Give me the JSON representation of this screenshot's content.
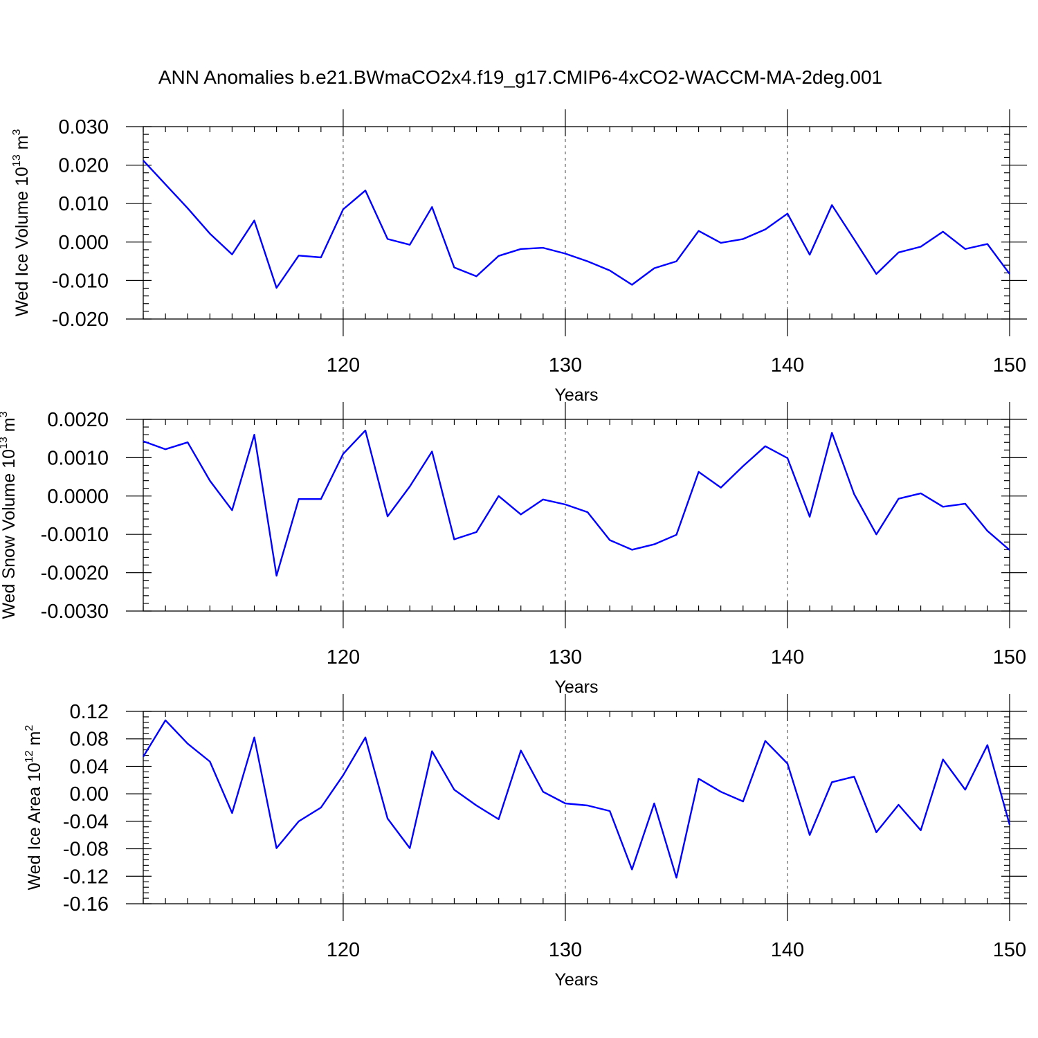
{
  "title": "ANN Anomalies b.e21.BWmaCO2x4.f19_g17.CMIP6-4xCO2-WACCM-MA-2deg.001",
  "colors": {
    "series": "#0000ff",
    "axes": "#000000",
    "background": "#ffffff"
  },
  "chart_data": [
    {
      "type": "line",
      "ylabel": "Wed Ice Volume 10^13 m^3",
      "ylabel_parts": {
        "text": "Wed Ice Volume 10",
        "exp": "13",
        "unit": " m",
        "unit_exp": "3"
      },
      "xlabel": "Years",
      "xlim": [
        111,
        150
      ],
      "ylim": [
        -0.02,
        0.03
      ],
      "yticks": [
        "-0.020",
        "-0.010",
        "0.000",
        "0.010",
        "0.020",
        "0.030"
      ],
      "ytick_values": [
        -0.02,
        -0.01,
        0.0,
        0.01,
        0.02,
        0.03
      ],
      "xticks": [
        "120",
        "130",
        "140",
        "150"
      ],
      "xtick_values": [
        120,
        130,
        140,
        150
      ],
      "grid_x": [
        120,
        130,
        140
      ],
      "x": [
        111,
        112,
        113,
        114,
        115,
        116,
        117,
        118,
        119,
        120,
        121,
        122,
        123,
        124,
        125,
        126,
        127,
        128,
        129,
        130,
        131,
        132,
        133,
        134,
        135,
        136,
        137,
        138,
        139,
        140,
        141,
        142,
        143,
        144,
        145,
        146,
        147,
        148,
        149,
        150
      ],
      "series": [
        {
          "name": "Wed Ice Volume",
          "values": [
            0.0212,
            0.015,
            0.0088,
            0.0022,
            -0.0032,
            0.0056,
            -0.0119,
            -0.0035,
            -0.004,
            0.0085,
            0.0134,
            0.0008,
            -0.0007,
            0.0091,
            -0.0066,
            -0.0089,
            -0.0036,
            -0.0018,
            -0.0015,
            -0.003,
            -0.005,
            -0.0074,
            -0.0111,
            -0.0068,
            -0.005,
            0.0029,
            -0.0002,
            0.0008,
            0.0033,
            0.0074,
            -0.0033,
            0.0096,
            0.0007,
            -0.0083,
            -0.0027,
            -0.0012,
            0.0027,
            -0.0018,
            -0.0005,
            -0.0083
          ]
        }
      ]
    },
    {
      "type": "line",
      "ylabel": "Wed Snow Volume 10^13 m^3",
      "ylabel_parts": {
        "text": "Wed Snow Volume 10",
        "exp": "13",
        "unit": " m",
        "unit_exp": "3"
      },
      "xlabel": "Years",
      "xlim": [
        111,
        150
      ],
      "ylim": [
        -0.003,
        0.002
      ],
      "yticks": [
        "-0.0030",
        "-0.0020",
        "-0.0010",
        "0.0000",
        "0.0010",
        "0.0020"
      ],
      "ytick_values": [
        -0.003,
        -0.002,
        -0.001,
        0.0,
        0.001,
        0.002
      ],
      "xticks": [
        "120",
        "130",
        "140",
        "150"
      ],
      "xtick_values": [
        120,
        130,
        140,
        150
      ],
      "grid_x": [
        120,
        130,
        140
      ],
      "x": [
        111,
        112,
        113,
        114,
        115,
        116,
        117,
        118,
        119,
        120,
        121,
        122,
        123,
        124,
        125,
        126,
        127,
        128,
        129,
        130,
        131,
        132,
        133,
        134,
        135,
        136,
        137,
        138,
        139,
        140,
        141,
        142,
        143,
        144,
        145,
        146,
        147,
        148,
        149,
        150
      ],
      "series": [
        {
          "name": "Wed Snow Volume",
          "values": [
            0.00143,
            0.00122,
            0.0014,
            0.0004,
            -0.00037,
            0.0016,
            -0.00208,
            -8e-05,
            -8e-05,
            0.0011,
            0.00171,
            -0.00053,
            0.00025,
            0.00116,
            -0.00113,
            -0.00094,
            0.0,
            -0.00048,
            -9e-05,
            -0.00022,
            -0.00042,
            -0.00115,
            -0.0014,
            -0.00126,
            -0.00101,
            0.00063,
            0.00022,
            0.00078,
            0.0013,
            0.00099,
            -0.00054,
            0.00165,
            5e-05,
            -0.001,
            -7e-05,
            7e-05,
            -0.00028,
            -0.0002,
            -0.00091,
            -0.00141
          ]
        }
      ]
    },
    {
      "type": "line",
      "ylabel": "Wed Ice Area 10^12 m^2",
      "ylabel_parts": {
        "text": "Wed Ice Area 10",
        "exp": "12",
        "unit": " m",
        "unit_exp": "2"
      },
      "xlabel": "Years",
      "xlim": [
        111,
        150
      ],
      "ylim": [
        -0.16,
        0.12
      ],
      "yticks": [
        "-0.16",
        "-0.12",
        "-0.08",
        "-0.04",
        "0.00",
        "0.04",
        "0.08",
        "0.12"
      ],
      "ytick_values": [
        -0.16,
        -0.12,
        -0.08,
        -0.04,
        0.0,
        0.04,
        0.08,
        0.12
      ],
      "xticks": [
        "120",
        "130",
        "140",
        "150"
      ],
      "xtick_values": [
        120,
        130,
        140,
        150
      ],
      "grid_x": [
        120,
        130,
        140
      ],
      "x": [
        111,
        112,
        113,
        114,
        115,
        116,
        117,
        118,
        119,
        120,
        121,
        122,
        123,
        124,
        125,
        126,
        127,
        128,
        129,
        130,
        131,
        132,
        133,
        134,
        135,
        136,
        137,
        138,
        139,
        140,
        141,
        142,
        143,
        144,
        145,
        146,
        147,
        148,
        149,
        150
      ],
      "series": [
        {
          "name": "Wed Ice Area",
          "values": [
            0.054,
            0.107,
            0.073,
            0.047,
            -0.028,
            0.082,
            -0.079,
            -0.04,
            -0.02,
            0.027,
            0.082,
            -0.036,
            -0.079,
            0.062,
            0.006,
            -0.017,
            -0.037,
            0.063,
            0.003,
            -0.014,
            -0.017,
            -0.025,
            -0.11,
            -0.014,
            -0.122,
            0.022,
            0.003,
            -0.011,
            0.077,
            0.044,
            -0.06,
            0.017,
            0.025,
            -0.056,
            -0.016,
            -0.053,
            0.05,
            0.006,
            0.071,
            -0.045
          ]
        }
      ]
    }
  ]
}
